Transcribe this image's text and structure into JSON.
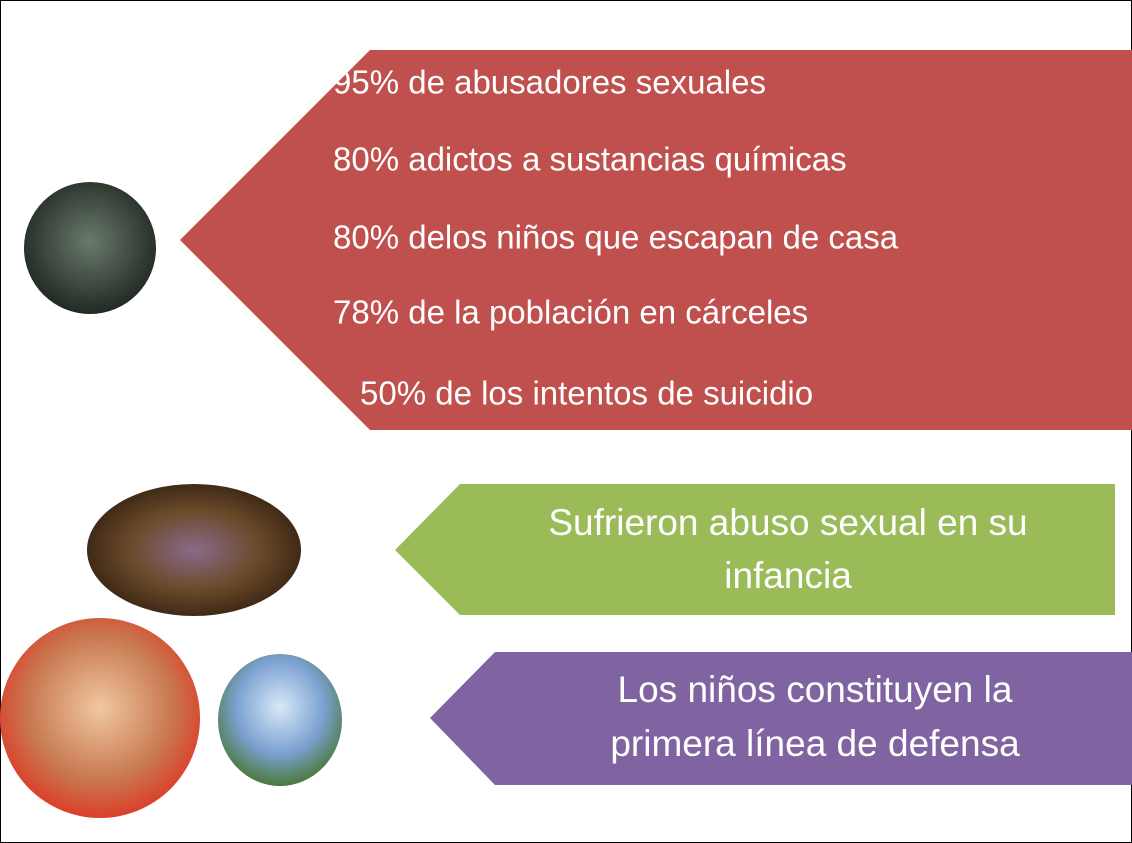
{
  "statistics": [
    "95% de abusadores sexuales",
    "80% adictos a sustancias químicas",
    "80% delos niños que escapan de casa",
    "78% de la población en cárceles",
    "50% de los intentos de suicidio"
  ],
  "callouts": [
    {
      "lines": [
        "Sufrieron abuso sexual en su",
        "infancia"
      ]
    },
    {
      "lines": [
        "Los niños constituyen la",
        "primera línea de defensa"
      ]
    }
  ]
}
